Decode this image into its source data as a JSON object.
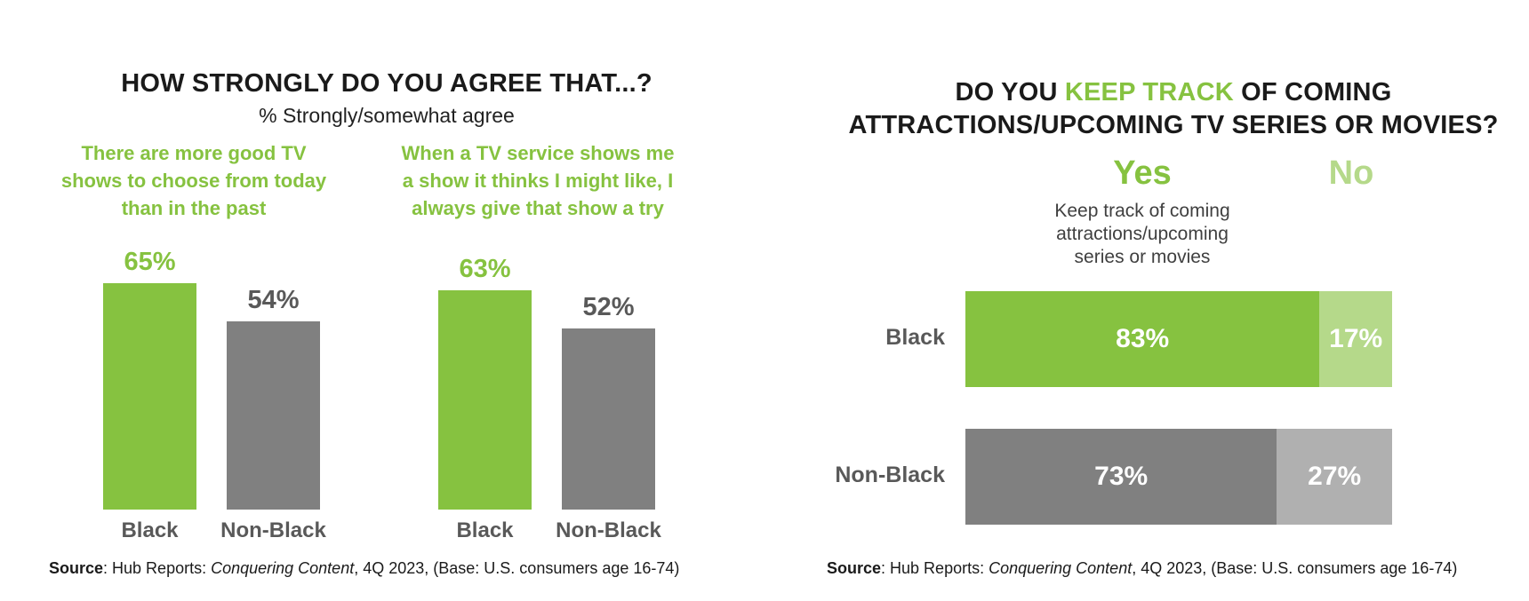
{
  "left": {
    "title": "HOW STRONGLY DO YOU AGREE THAT...?",
    "subtitle": "% Strongly/somewhat agree",
    "source_label": "Source",
    "source_text_pre": ": Hub Reports: ",
    "source_italic": "Conquering Content",
    "source_text_post": ", 4Q 2023, (Base: U.S. consumers age 16-74)"
  },
  "right": {
    "title_line1_pre": "DO YOU ",
    "title_line1_highlight": "KEEP TRACK",
    "title_line1_post": " OF COMING",
    "title_line2": "ATTRACTIONS/UPCOMING TV SERIES OR MOVIES?",
    "yes_label": "Yes",
    "no_label": "No",
    "yes_desc_line1": "Keep track of coming",
    "yes_desc_line2": "attractions/upcoming",
    "yes_desc_line3": "series or movies",
    "source_label": "Source",
    "source_text_pre": ": Hub Reports: ",
    "source_italic": "Conquering Content",
    "source_text_post": ", 4Q 2023, (Base: U.S. consumers age 16-74)"
  },
  "colors": {
    "green": "#86c240",
    "light_green": "#b5d98a",
    "gray": "#808080",
    "light_gray": "#b0b0b0",
    "label_gray": "#595959"
  },
  "chart_data": [
    {
      "type": "bar",
      "title": "There are more good TV shows to choose from today than in the past",
      "title_lines": [
        "There are more good TV",
        "shows to choose from today",
        "than in the past"
      ],
      "categories": [
        "Black",
        "Non-Black"
      ],
      "values": [
        65,
        54
      ],
      "value_labels": [
        "65%",
        "54%"
      ],
      "ylim": [
        0,
        65
      ]
    },
    {
      "type": "bar",
      "title": "When a TV service shows me a show it thinks I might like, I always give that show a try",
      "title_lines": [
        "When a TV service shows me",
        "a show it thinks I might like, I",
        "always give that show a try"
      ],
      "categories": [
        "Black",
        "Non-Black"
      ],
      "values": [
        63,
        52
      ],
      "value_labels": [
        "63%",
        "52%"
      ],
      "ylim": [
        0,
        65
      ]
    },
    {
      "type": "bar",
      "orientation": "horizontal-stacked",
      "categories": [
        "Black",
        "Non-Black"
      ],
      "series": [
        {
          "name": "Yes",
          "values": [
            83,
            73
          ],
          "labels": [
            "83%",
            "73%"
          ]
        },
        {
          "name": "No",
          "values": [
            17,
            27
          ],
          "labels": [
            "17%",
            "27%"
          ]
        }
      ],
      "xlim": [
        0,
        100
      ]
    }
  ]
}
